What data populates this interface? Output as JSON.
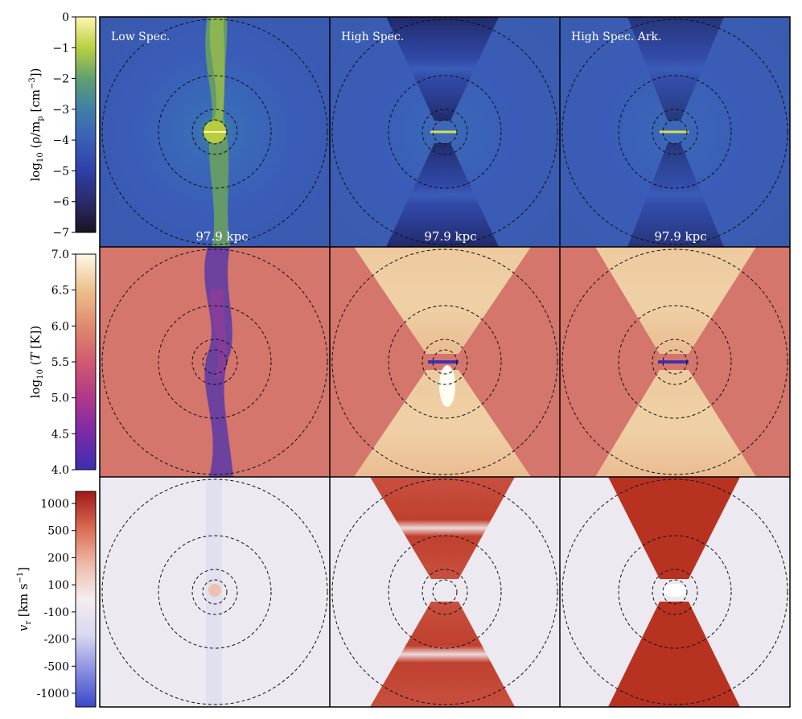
{
  "figure": {
    "columns": [
      "Low Spec.",
      "High Spec.",
      "High Spec. Ark."
    ],
    "scale_bar_label": "97.9 kpc",
    "rows": [
      {
        "quantity": "density",
        "colorbar_label": "log10 (ρ/m_p [cm^-3])",
        "colorbar_label_parts": {
          "prefix": "log",
          "sub": "10",
          "mid": " (ρ/m",
          "sub2": "p",
          "mid2": " [cm",
          "sup": "−3",
          "suffix": "])"
        },
        "ticks": [
          "0",
          "−1",
          "−2",
          "−3",
          "−4",
          "−5",
          "−6",
          "−7"
        ],
        "range": [
          -7,
          0
        ],
        "colors": [
          "#1a1420",
          "#2b2a6b",
          "#2f3fa8",
          "#3a5fb8",
          "#3f7fa8",
          "#5fa070",
          "#b8d040",
          "#fff7b0"
        ]
      },
      {
        "quantity": "temperature",
        "colorbar_label": "log10 (T [K])",
        "colorbar_label_parts": {
          "prefix": "log",
          "sub": "10",
          "mid": " (",
          "italic": "T",
          "suffix": " [K])"
        },
        "ticks": [
          "7.0",
          "6.5",
          "6.0",
          "5.5",
          "5.0",
          "4.5",
          "4.0"
        ],
        "range": [
          4.0,
          7.0
        ],
        "colors": [
          "#3b2fb0",
          "#7a2aa8",
          "#b0388a",
          "#d05a70",
          "#e08a6e",
          "#ecc08a",
          "#fff8e6"
        ]
      },
      {
        "quantity": "radial_velocity",
        "colorbar_label": "v_r [km s^-1]",
        "colorbar_label_parts": {
          "italic": "v",
          "sub": "r",
          "mid": " [km s",
          "sup": "−1",
          "suffix": "]"
        },
        "ticks": [
          "1000",
          "500",
          "200",
          "100",
          "-100",
          "-200",
          "-500",
          "-1000"
        ],
        "colors": [
          "#3848c8",
          "#8a8ee0",
          "#d8d8f0",
          "#f4eeee",
          "#eeb8a8",
          "#d86a50",
          "#a01818"
        ]
      }
    ]
  }
}
